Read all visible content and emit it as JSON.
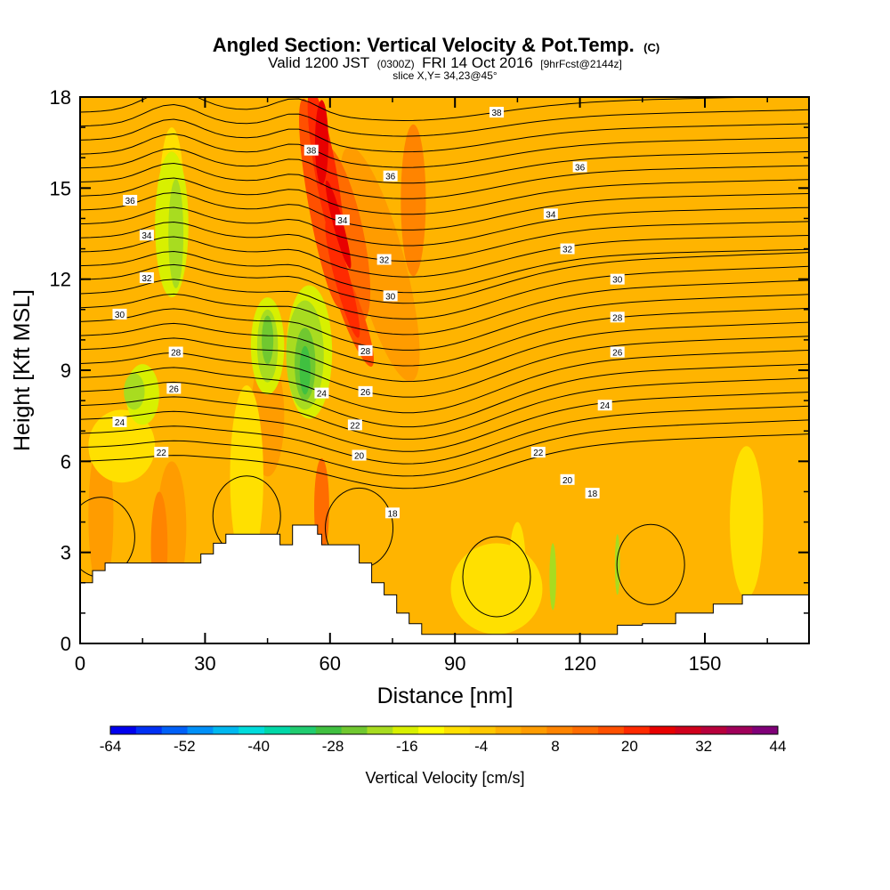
{
  "title": {
    "main": "Angled Section: Vertical Velocity & Pot.Temp.",
    "main_suffix": "(C)",
    "valid_a": "Valid 1200 JST",
    "valid_b": "(0300Z)",
    "valid_c": "FRI 14 Oct 2016",
    "valid_d": "[9hrFcst@2144z]",
    "slice": "slice X,Y= 34,23@45°"
  },
  "chart_data": {
    "type": "heatmap",
    "description": "vertical cross-section: filled vertical velocity with potential temperature contours",
    "xlabel": "Distance [nm]",
    "ylabel": "Height [Kft MSL]",
    "xlim": [
      0,
      175
    ],
    "ylim": [
      0,
      18
    ],
    "xticks": [
      0,
      30,
      60,
      90,
      120,
      150
    ],
    "yticks": [
      0,
      3,
      6,
      9,
      12,
      15,
      18
    ],
    "xticklabels": [
      "0",
      "30",
      "60",
      "90",
      "120",
      "150"
    ],
    "yticklabels": [
      "0",
      "3",
      "6",
      "9",
      "12",
      "15",
      "18"
    ],
    "colorbar": {
      "label": "Vertical Velocity [cm/s]",
      "ticks": [
        "-64",
        "-52",
        "-40",
        "-28",
        "-16",
        "-4",
        "8",
        "20",
        "32",
        "44"
      ],
      "range": [
        -64,
        44
      ],
      "colors": [
        "#0000ee",
        "#0030f4",
        "#0060f8",
        "#0090f8",
        "#00b8f0",
        "#00dcdc",
        "#00d8a8",
        "#20cc70",
        "#40c040",
        "#70c830",
        "#a8dc20",
        "#d8f000",
        "#ffff00",
        "#ffe000",
        "#ffc800",
        "#ffb000",
        "#ff9c00",
        "#ff8400",
        "#ff6c00",
        "#ff5000",
        "#ff2a00",
        "#e80000",
        "#d0001c",
        "#b8003c",
        "#a0005a",
        "#800078"
      ]
    },
    "isotherm_labels": [
      {
        "label": "38",
        "x": 55.5,
        "y": 16.25
      },
      {
        "label": "38",
        "x": 100,
        "y": 17.5
      },
      {
        "label": "36",
        "x": 12,
        "y": 14.6
      },
      {
        "label": "36",
        "x": 74.5,
        "y": 15.4
      },
      {
        "label": "36",
        "x": 120,
        "y": 15.7
      },
      {
        "label": "34",
        "x": 16,
        "y": 13.45
      },
      {
        "label": "34",
        "x": 63,
        "y": 13.95
      },
      {
        "label": "34",
        "x": 113,
        "y": 14.15
      },
      {
        "label": "32",
        "x": 16,
        "y": 12.05
      },
      {
        "label": "32",
        "x": 73,
        "y": 12.65
      },
      {
        "label": "32",
        "x": 117,
        "y": 13.0
      },
      {
        "label": "30",
        "x": 9.5,
        "y": 10.85
      },
      {
        "label": "30",
        "x": 74.5,
        "y": 11.45
      },
      {
        "label": "30",
        "x": 129,
        "y": 12.0
      },
      {
        "label": "28",
        "x": 23,
        "y": 9.6
      },
      {
        "label": "28",
        "x": 68.5,
        "y": 9.65
      },
      {
        "label": "28",
        "x": 129,
        "y": 10.75
      },
      {
        "label": "26",
        "x": 22.5,
        "y": 8.4
      },
      {
        "label": "26",
        "x": 68.5,
        "y": 8.3
      },
      {
        "label": "26",
        "x": 129,
        "y": 9.6
      },
      {
        "label": "24",
        "x": 58,
        "y": 8.25
      },
      {
        "label": "24",
        "x": 9.5,
        "y": 7.3
      },
      {
        "label": "24",
        "x": 126,
        "y": 7.85
      },
      {
        "label": "22",
        "x": 66,
        "y": 7.2
      },
      {
        "label": "22",
        "x": 19.5,
        "y": 6.3
      },
      {
        "label": "22",
        "x": 110,
        "y": 6.3
      },
      {
        "label": "20",
        "x": 67,
        "y": 6.2
      },
      {
        "label": "20",
        "x": 117,
        "y": 5.4
      },
      {
        "label": "18",
        "x": 75,
        "y": 4.3
      },
      {
        "label": "18",
        "x": 123,
        "y": 4.95
      }
    ]
  }
}
